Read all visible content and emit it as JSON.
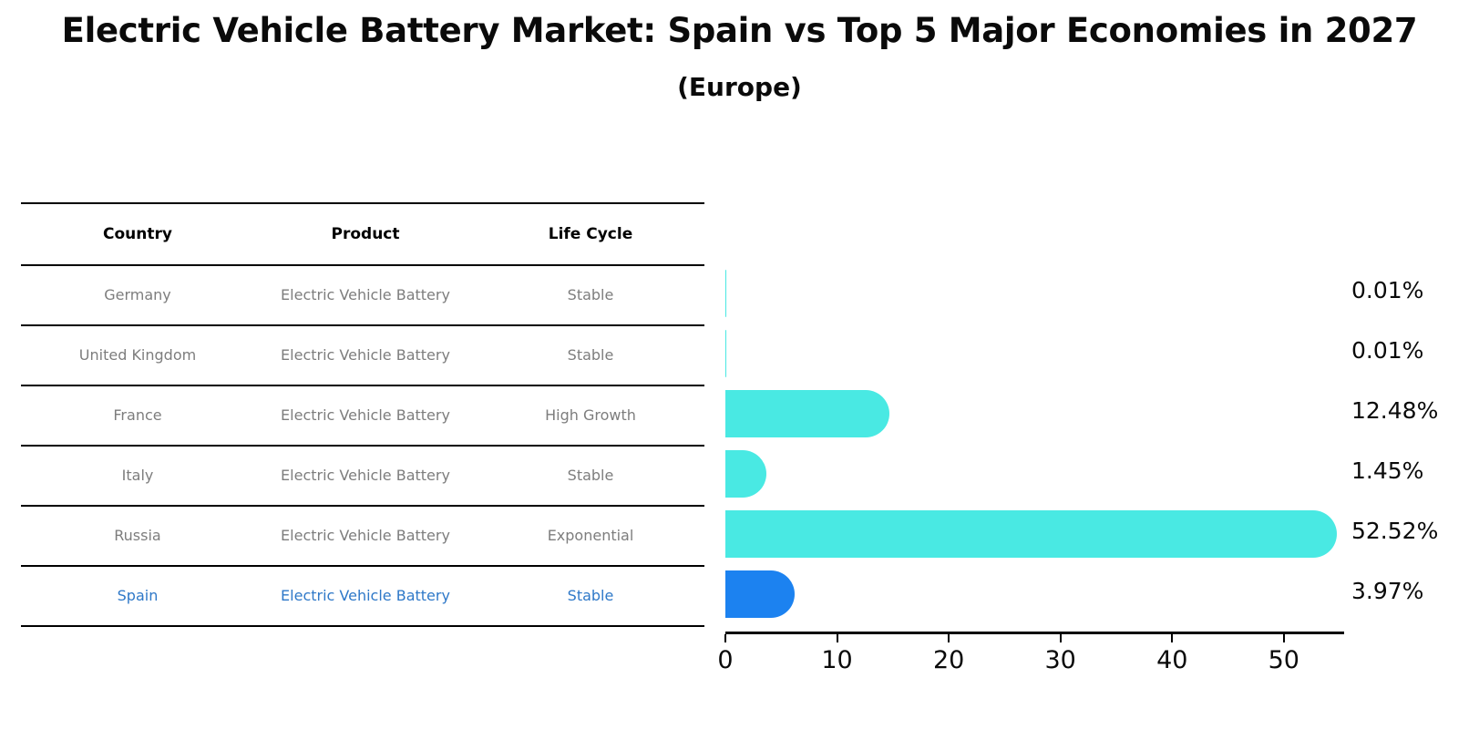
{
  "title": "Electric Vehicle Battery Market: Spain vs Top 5 Major Economies in 2027",
  "subtitle": "(Europe)",
  "table": {
    "headers": [
      "Country",
      "Product",
      "Life Cycle"
    ],
    "rows": [
      {
        "country": "Germany",
        "product": "Electric Vehicle Battery",
        "life_cycle": "Stable",
        "highlight": false
      },
      {
        "country": "United Kingdom",
        "product": "Electric Vehicle Battery",
        "life_cycle": "Stable",
        "highlight": false
      },
      {
        "country": "France",
        "product": "Electric Vehicle Battery",
        "life_cycle": "High Growth",
        "highlight": false
      },
      {
        "country": "Italy",
        "product": "Electric Vehicle Battery",
        "life_cycle": "Stable",
        "highlight": false
      },
      {
        "country": "Russia",
        "product": "Electric Vehicle Battery",
        "life_cycle": "Exponential",
        "highlight": false
      },
      {
        "country": "Spain",
        "product": "Electric Vehicle Battery",
        "life_cycle": "Stable",
        "highlight": true
      }
    ]
  },
  "chart_data": {
    "type": "bar",
    "orientation": "horizontal",
    "title": "Electric Vehicle Battery Market: Spain vs Top 5 Major Economies in 2027 (Europe)",
    "categories": [
      "Germany",
      "United Kingdom",
      "France",
      "Italy",
      "Russia",
      "Spain"
    ],
    "values": [
      0.01,
      0.01,
      12.48,
      1.45,
      52.52,
      3.97
    ],
    "value_labels": [
      "0.01%",
      "0.01%",
      "12.48%",
      "1.45%",
      "52.52%",
      "3.97%"
    ],
    "x_ticks": [
      0,
      10,
      20,
      30,
      40,
      50
    ],
    "xlim": [
      0,
      55.4
    ],
    "grid": false,
    "legend": false,
    "bar_color": "#49e9e3",
    "highlight_bar_color": "#1c82f0",
    "highlight_category": "Spain"
  },
  "colors": {
    "table_text_gray": "#7d7d7d",
    "highlight_text_blue": "#2e78c8",
    "axis_black": "#000000"
  }
}
